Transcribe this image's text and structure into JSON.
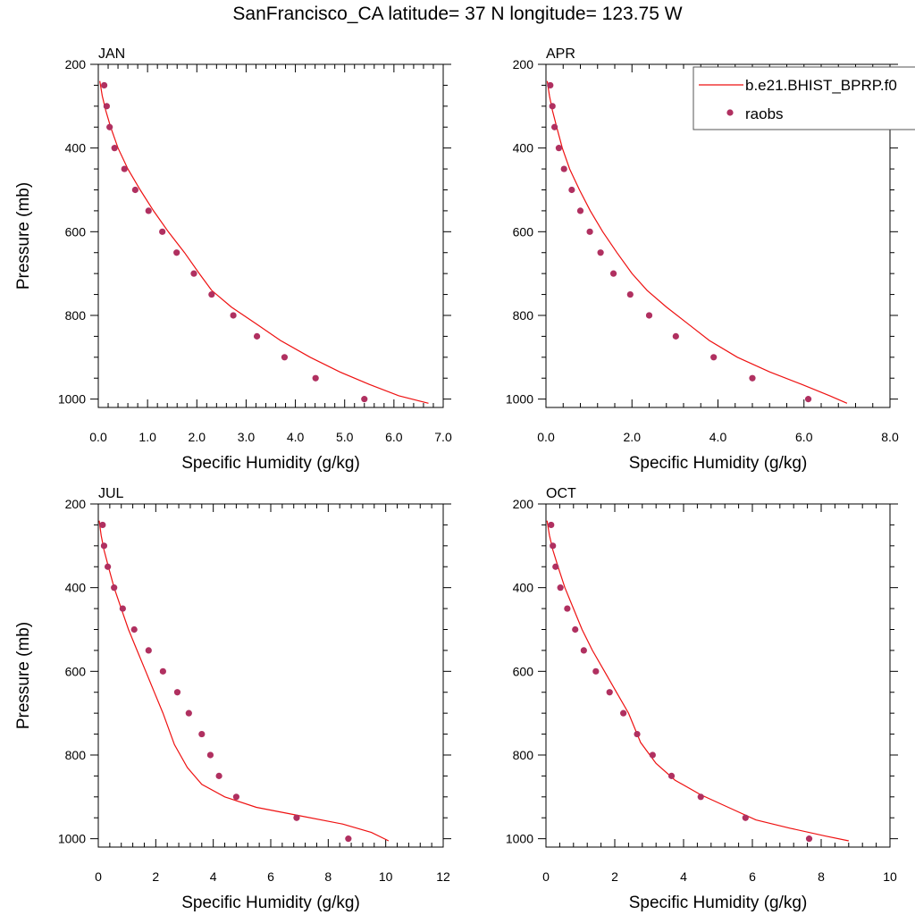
{
  "title": "SanFrancisco_CA  latitude= 37 N longitude= 123.75 W",
  "colors": {
    "model_line": "#ee1111",
    "raobs_marker": "#b03060",
    "axis": "#000000"
  },
  "legend": {
    "model_label": "b.e21.BHIST_BPRP.f0",
    "obs_label": "raobs",
    "panel": "APR",
    "placement": "top-right"
  },
  "chart_data": [
    {
      "type": "line",
      "panel": "JAN",
      "xlabel": "Specific Humidity (g/kg)",
      "ylabel": "Pressure (mb)",
      "xlim": [
        0,
        7
      ],
      "ylim": [
        1020,
        200
      ],
      "xticks": [
        "0.0",
        "1.0",
        "2.0",
        "3.0",
        "4.0",
        "5.0",
        "6.0",
        "7.0"
      ],
      "yticks": [
        "200",
        "400",
        "600",
        "800",
        "1000"
      ],
      "series": [
        {
          "name": "b.e21.BHIST_BPRP.f0",
          "kind": "line",
          "x": [
            0.03,
            0.08,
            0.15,
            0.25,
            0.4,
            0.6,
            0.85,
            1.12,
            1.42,
            1.75,
            2.05,
            2.3,
            2.7,
            3.2,
            3.7,
            4.3,
            4.9,
            5.5,
            6.1,
            6.7
          ],
          "y": [
            240,
            275,
            310,
            350,
            400,
            450,
            500,
            550,
            600,
            650,
            700,
            740,
            780,
            820,
            860,
            900,
            935,
            965,
            992,
            1010
          ]
        },
        {
          "name": "raobs",
          "kind": "scatter",
          "x": [
            0.12,
            0.17,
            0.23,
            0.33,
            0.53,
            0.75,
            1.02,
            1.3,
            1.59,
            1.94,
            2.3,
            2.74,
            3.22,
            3.78,
            4.41,
            5.4
          ],
          "y": [
            250,
            300,
            350,
            400,
            450,
            500,
            550,
            600,
            650,
            700,
            750,
            800,
            850,
            900,
            950,
            1000
          ]
        }
      ]
    },
    {
      "type": "line",
      "panel": "APR",
      "xlabel": "Specific Humidity (g/kg)",
      "ylabel": "",
      "xlim": [
        0,
        8
      ],
      "ylim": [
        1020,
        200
      ],
      "xticks": [
        "0.0",
        "2.0",
        "4.0",
        "6.0",
        "8.0"
      ],
      "yticks": [
        "200",
        "400",
        "600",
        "800",
        "1000"
      ],
      "series": [
        {
          "name": "b.e21.BHIST_BPRP.f0",
          "kind": "line",
          "x": [
            0.03,
            0.08,
            0.15,
            0.25,
            0.38,
            0.55,
            0.78,
            1.03,
            1.32,
            1.65,
            2.0,
            2.35,
            2.8,
            3.3,
            3.8,
            4.45,
            5.2,
            5.95,
            6.6,
            7.0
          ],
          "y": [
            240,
            275,
            310,
            350,
            400,
            450,
            500,
            550,
            600,
            650,
            700,
            740,
            780,
            820,
            860,
            900,
            935,
            965,
            992,
            1010
          ]
        },
        {
          "name": "raobs",
          "kind": "scatter",
          "x": [
            0.1,
            0.15,
            0.2,
            0.3,
            0.42,
            0.6,
            0.8,
            1.02,
            1.27,
            1.57,
            1.96,
            2.4,
            3.02,
            3.9,
            4.8,
            6.1
          ],
          "y": [
            250,
            300,
            350,
            400,
            450,
            500,
            550,
            600,
            650,
            700,
            750,
            800,
            850,
            900,
            950,
            1000
          ]
        }
      ]
    },
    {
      "type": "line",
      "panel": "JUL",
      "xlabel": "Specific Humidity (g/kg)",
      "ylabel": "Pressure (mb)",
      "xlim": [
        0,
        12
      ],
      "ylim": [
        1020,
        200
      ],
      "xticks": [
        "0",
        "2",
        "4",
        "6",
        "8",
        "10",
        "12"
      ],
      "yticks": [
        "200",
        "400",
        "600",
        "800",
        "1000"
      ],
      "series": [
        {
          "name": "b.e21.BHIST_BPRP.f0",
          "kind": "line",
          "x": [
            0.03,
            0.1,
            0.2,
            0.35,
            0.55,
            0.8,
            1.05,
            1.35,
            1.65,
            1.95,
            2.25,
            2.65,
            3.1,
            3.6,
            4.4,
            5.5,
            7.0,
            8.5,
            9.5,
            10.1
          ],
          "y": [
            240,
            275,
            310,
            350,
            400,
            450,
            500,
            550,
            600,
            650,
            700,
            775,
            830,
            870,
            900,
            925,
            945,
            965,
            985,
            1005
          ]
        },
        {
          "name": "raobs",
          "kind": "scatter",
          "x": [
            0.15,
            0.2,
            0.33,
            0.55,
            0.85,
            1.25,
            1.75,
            2.25,
            2.75,
            3.15,
            3.6,
            3.9,
            4.2,
            4.8,
            6.9,
            8.7
          ],
          "y": [
            250,
            300,
            350,
            400,
            450,
            500,
            550,
            600,
            650,
            700,
            750,
            800,
            850,
            900,
            950,
            1000
          ]
        }
      ]
    },
    {
      "type": "line",
      "panel": "OCT",
      "xlabel": "Specific Humidity (g/kg)",
      "ylabel": "",
      "xlim": [
        0,
        10
      ],
      "ylim": [
        1020,
        200
      ],
      "xticks": [
        "0",
        "2",
        "4",
        "6",
        "8",
        "10"
      ],
      "yticks": [
        "200",
        "400",
        "600",
        "800",
        "1000"
      ],
      "series": [
        {
          "name": "b.e21.BHIST_BPRP.f0",
          "kind": "line",
          "x": [
            0.03,
            0.1,
            0.2,
            0.35,
            0.55,
            0.8,
            1.05,
            1.35,
            1.7,
            2.05,
            2.4,
            2.75,
            3.2,
            3.75,
            4.5,
            5.3,
            6.1,
            7.1,
            8.1,
            8.8
          ],
          "y": [
            240,
            275,
            310,
            350,
            400,
            450,
            500,
            550,
            600,
            650,
            700,
            770,
            820,
            860,
            895,
            925,
            955,
            975,
            993,
            1005
          ]
        },
        {
          "name": "raobs",
          "kind": "scatter",
          "x": [
            0.15,
            0.2,
            0.28,
            0.42,
            0.62,
            0.85,
            1.1,
            1.45,
            1.85,
            2.25,
            2.65,
            3.1,
            3.65,
            4.5,
            5.8,
            7.65
          ],
          "y": [
            250,
            300,
            350,
            400,
            450,
            500,
            550,
            600,
            650,
            700,
            750,
            800,
            850,
            900,
            950,
            1000
          ]
        }
      ]
    }
  ]
}
